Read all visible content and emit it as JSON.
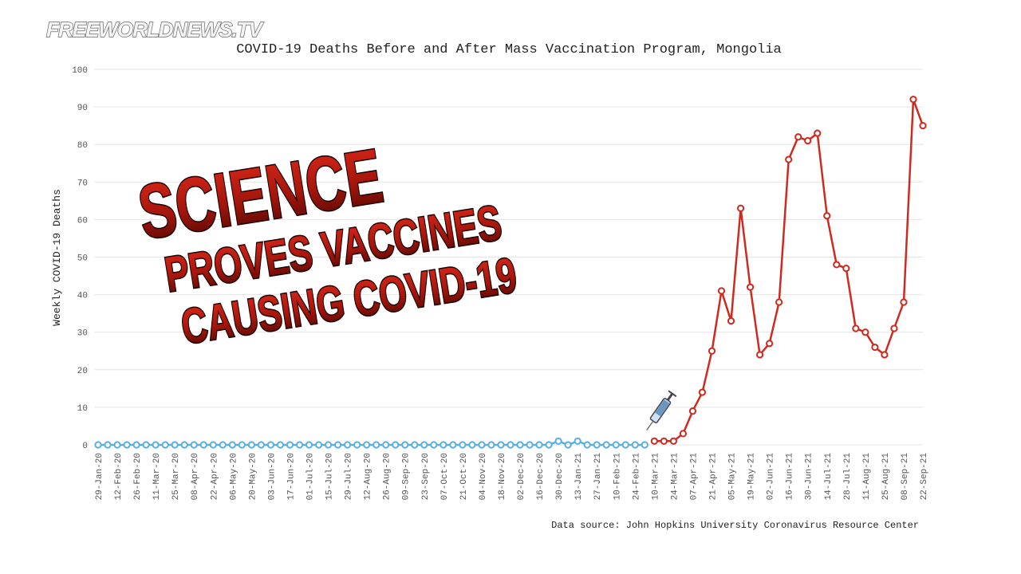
{
  "watermark": "FREEWORLDNEWS.TV",
  "chart_data": {
    "type": "line",
    "title": "COVID-19 Deaths Before and After Mass Vaccination Program, Mongolia",
    "y_label": "Weekly COVID-19 Deaths",
    "source": "Data source: John Hopkins University Coronavirus Resource Center",
    "annotations": [
      "SCIENCE",
      "PROVES VACCINES",
      "CAUSING COVID-19"
    ],
    "categories": [
      "29-Jan-20",
      null,
      "12-Feb-20",
      null,
      "26-Feb-20",
      null,
      "11-Mar-20",
      null,
      "25-Mar-20",
      null,
      "08-Apr-20",
      null,
      "22-Apr-20",
      null,
      "06-May-20",
      null,
      "20-May-20",
      null,
      "03-Jun-20",
      null,
      "17-Jun-20",
      null,
      "01-Jul-20",
      null,
      "15-Jul-20",
      null,
      "29-Jul-20",
      null,
      "12-Aug-20",
      null,
      "26-Aug-20",
      null,
      "09-Sep-20",
      null,
      "23-Sep-20",
      null,
      "07-Oct-20",
      null,
      "21-Oct-20",
      null,
      "04-Nov-20",
      null,
      "18-Nov-20",
      null,
      "02-Dec-20",
      null,
      "16-Dec-20",
      null,
      "30-Dec-20",
      null,
      "13-Jan-21",
      null,
      "27-Jan-21",
      null,
      "10-Feb-21",
      null,
      "24-Feb-21",
      null,
      "10-Mar-21",
      null,
      "24-Mar-21",
      null,
      "07-Apr-21",
      null,
      "21-Apr-21",
      null,
      "05-May-21",
      null,
      "19-May-21",
      null,
      "02-Jun-21",
      null,
      "16-Jun-21",
      null,
      "30-Jun-21",
      null,
      "14-Jul-21",
      null,
      "28-Jul-21",
      null,
      "11-Aug-21",
      null,
      "25-Aug-21",
      null,
      "08-Sep-21",
      null,
      "22-Sep-21"
    ],
    "series": [
      {
        "color": "#5aaee0",
        "values": [
          0,
          0,
          0,
          0,
          0,
          0,
          0,
          0,
          0,
          0,
          0,
          0,
          0,
          0,
          0,
          0,
          0,
          0,
          0,
          0,
          0,
          0,
          0,
          0,
          0,
          0,
          0,
          0,
          0,
          0,
          0,
          0,
          0,
          0,
          0,
          0,
          0,
          0,
          0,
          0,
          0,
          0,
          0,
          0,
          0,
          0,
          0,
          0,
          1,
          0,
          1,
          0,
          0,
          0,
          0,
          0,
          0,
          0,
          null,
          null,
          null,
          null,
          null,
          null,
          null,
          null,
          null,
          null,
          null,
          null,
          null,
          null,
          null,
          null,
          null,
          null,
          null,
          null,
          null,
          null,
          null,
          null,
          null,
          null,
          null,
          null,
          null
        ]
      },
      {
        "color": "#cf2a1f",
        "values": [
          null,
          null,
          null,
          null,
          null,
          null,
          null,
          null,
          null,
          null,
          null,
          null,
          null,
          null,
          null,
          null,
          null,
          null,
          null,
          null,
          null,
          null,
          null,
          null,
          null,
          null,
          null,
          null,
          null,
          null,
          null,
          null,
          null,
          null,
          null,
          null,
          null,
          null,
          null,
          null,
          null,
          null,
          null,
          null,
          null,
          null,
          null,
          null,
          null,
          null,
          null,
          null,
          null,
          null,
          null,
          null,
          null,
          null,
          1,
          1,
          1,
          3,
          9,
          14,
          25,
          41,
          33,
          63,
          42,
          24,
          27,
          38,
          76,
          82,
          81,
          83,
          61,
          48,
          47,
          31,
          30,
          26,
          24,
          31,
          38,
          92,
          85
        ]
      }
    ],
    "ylim": [
      0,
      100
    ],
    "yticks": [
      0,
      10,
      20,
      30,
      40,
      50,
      60,
      70,
      80,
      90,
      100
    ],
    "grid": true
  }
}
